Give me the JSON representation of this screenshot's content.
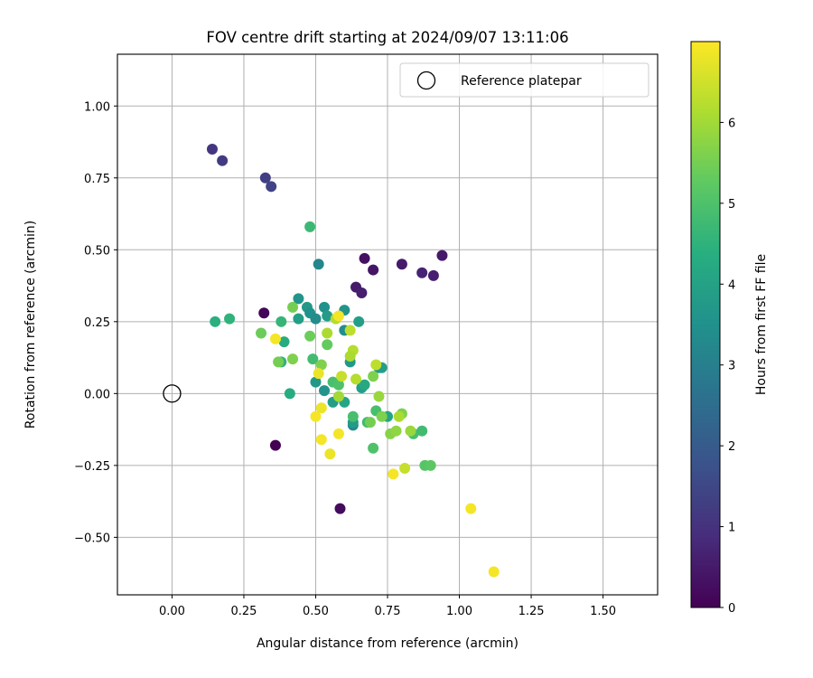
{
  "chart_data": {
    "type": "scatter",
    "title": "FOV centre drift starting at 2024/09/07 13:11:06",
    "xlabel": "Angular distance from reference (arcmin)",
    "ylabel": "Rotation from reference (arcmin)",
    "xlim": [
      -0.19,
      1.69
    ],
    "ylim": [
      -0.7,
      1.18
    ],
    "xticks": [
      0.0,
      0.25,
      0.5,
      0.75,
      1.0,
      1.25,
      1.5
    ],
    "xtick_labels": [
      "0.00",
      "0.25",
      "0.50",
      "0.75",
      "1.00",
      "1.25",
      "1.50"
    ],
    "yticks": [
      -0.5,
      -0.25,
      0.0,
      0.25,
      0.5,
      0.75,
      1.0
    ],
    "ytick_labels": [
      "−0.50",
      "−0.25",
      "0.00",
      "0.25",
      "0.50",
      "0.75",
      "1.00"
    ],
    "grid": true,
    "colormap": "viridis",
    "colorbar": {
      "label": "Hours from first FF file",
      "range": [
        0,
        7.0
      ],
      "ticks": [
        0,
        1,
        2,
        3,
        4,
        5,
        6
      ],
      "tick_labels": [
        "0",
        "1",
        "2",
        "3",
        "4",
        "5",
        "6"
      ]
    },
    "legend": {
      "placement": "top-right",
      "entries": [
        {
          "label": "Reference platepar",
          "marker": "open-circle"
        }
      ]
    },
    "reference_point": {
      "x": 0.0,
      "y": 0.0
    },
    "points": [
      {
        "x": 0.36,
        "y": -0.18,
        "c": 0.0
      },
      {
        "x": 0.32,
        "y": 0.28,
        "c": 0.1
      },
      {
        "x": 0.585,
        "y": -0.4,
        "c": 0.2
      },
      {
        "x": 0.67,
        "y": 0.47,
        "c": 0.3
      },
      {
        "x": 0.7,
        "y": 0.43,
        "c": 0.4
      },
      {
        "x": 0.64,
        "y": 0.37,
        "c": 0.5
      },
      {
        "x": 0.66,
        "y": 0.35,
        "c": 0.6
      },
      {
        "x": 0.8,
        "y": 0.45,
        "c": 0.5
      },
      {
        "x": 0.87,
        "y": 0.42,
        "c": 0.7
      },
      {
        "x": 0.91,
        "y": 0.41,
        "c": 0.6
      },
      {
        "x": 0.94,
        "y": 0.48,
        "c": 0.5
      },
      {
        "x": 0.14,
        "y": 0.85,
        "c": 1.1
      },
      {
        "x": 0.175,
        "y": 0.81,
        "c": 1.2
      },
      {
        "x": 0.325,
        "y": 0.75,
        "c": 1.3
      },
      {
        "x": 0.345,
        "y": 0.72,
        "c": 1.4
      },
      {
        "x": 0.51,
        "y": 0.45,
        "c": 3.2
      },
      {
        "x": 0.44,
        "y": 0.33,
        "c": 3.6
      },
      {
        "x": 0.47,
        "y": 0.3,
        "c": 3.7
      },
      {
        "x": 0.48,
        "y": 0.28,
        "c": 3.5
      },
      {
        "x": 0.5,
        "y": 0.26,
        "c": 3.4
      },
      {
        "x": 0.53,
        "y": 0.3,
        "c": 3.5
      },
      {
        "x": 0.54,
        "y": 0.27,
        "c": 3.8
      },
      {
        "x": 0.6,
        "y": 0.29,
        "c": 3.6
      },
      {
        "x": 0.65,
        "y": 0.25,
        "c": 3.9
      },
      {
        "x": 0.44,
        "y": 0.26,
        "c": 3.9
      },
      {
        "x": 0.6,
        "y": 0.22,
        "c": 3.4
      },
      {
        "x": 0.62,
        "y": 0.11,
        "c": 3.7
      },
      {
        "x": 0.72,
        "y": 0.09,
        "c": 3.6
      },
      {
        "x": 0.73,
        "y": 0.09,
        "c": 3.9
      },
      {
        "x": 0.5,
        "y": 0.04,
        "c": 3.7
      },
      {
        "x": 0.53,
        "y": 0.01,
        "c": 3.6
      },
      {
        "x": 0.56,
        "y": -0.03,
        "c": 3.9
      },
      {
        "x": 0.63,
        "y": -0.11,
        "c": 3.3
      },
      {
        "x": 0.63,
        "y": -0.1,
        "c": 3.8
      },
      {
        "x": 0.66,
        "y": 0.02,
        "c": 3.9
      },
      {
        "x": 0.67,
        "y": 0.03,
        "c": 4.2
      },
      {
        "x": 0.75,
        "y": -0.08,
        "c": 4.1
      },
      {
        "x": 0.6,
        "y": -0.03,
        "c": 4.1
      },
      {
        "x": 0.41,
        "y": 0.0,
        "c": 4.3
      },
      {
        "x": 0.48,
        "y": 0.58,
        "c": 4.7
      },
      {
        "x": 0.15,
        "y": 0.25,
        "c": 4.4
      },
      {
        "x": 0.2,
        "y": 0.26,
        "c": 4.5
      },
      {
        "x": 0.38,
        "y": 0.25,
        "c": 4.6
      },
      {
        "x": 0.39,
        "y": 0.18,
        "c": 4.3
      },
      {
        "x": 0.38,
        "y": 0.11,
        "c": 4.5
      },
      {
        "x": 0.49,
        "y": 0.12,
        "c": 4.8
      },
      {
        "x": 0.56,
        "y": 0.04,
        "c": 4.9
      },
      {
        "x": 0.58,
        "y": 0.03,
        "c": 5.0
      },
      {
        "x": 0.63,
        "y": -0.08,
        "c": 4.9
      },
      {
        "x": 0.68,
        "y": -0.1,
        "c": 4.8
      },
      {
        "x": 0.71,
        "y": -0.06,
        "c": 4.9
      },
      {
        "x": 0.7,
        "y": -0.19,
        "c": 5.0
      },
      {
        "x": 0.84,
        "y": -0.14,
        "c": 4.9
      },
      {
        "x": 0.87,
        "y": -0.13,
        "c": 4.8
      },
      {
        "x": 0.88,
        "y": -0.25,
        "c": 5.1
      },
      {
        "x": 0.9,
        "y": -0.25,
        "c": 5.2
      },
      {
        "x": 0.31,
        "y": 0.21,
        "c": 5.4
      },
      {
        "x": 0.37,
        "y": 0.11,
        "c": 5.5
      },
      {
        "x": 0.42,
        "y": 0.12,
        "c": 5.6
      },
      {
        "x": 0.42,
        "y": 0.3,
        "c": 5.5
      },
      {
        "x": 0.48,
        "y": 0.2,
        "c": 5.4
      },
      {
        "x": 0.54,
        "y": 0.17,
        "c": 5.3
      },
      {
        "x": 0.52,
        "y": 0.1,
        "c": 5.6
      },
      {
        "x": 0.69,
        "y": -0.1,
        "c": 5.5
      },
      {
        "x": 0.7,
        "y": 0.06,
        "c": 5.6
      },
      {
        "x": 0.73,
        "y": -0.08,
        "c": 5.6
      },
      {
        "x": 0.76,
        "y": -0.14,
        "c": 5.7
      },
      {
        "x": 0.78,
        "y": -0.13,
        "c": 5.8
      },
      {
        "x": 0.8,
        "y": -0.07,
        "c": 5.6
      },
      {
        "x": 0.83,
        "y": -0.13,
        "c": 5.9
      },
      {
        "x": 0.72,
        "y": -0.01,
        "c": 5.9
      },
      {
        "x": 0.54,
        "y": 0.21,
        "c": 6.1
      },
      {
        "x": 0.57,
        "y": 0.26,
        "c": 6.2
      },
      {
        "x": 0.58,
        "y": -0.01,
        "c": 6.0
      },
      {
        "x": 0.62,
        "y": 0.22,
        "c": 6.3
      },
      {
        "x": 0.63,
        "y": 0.15,
        "c": 6.2
      },
      {
        "x": 0.62,
        "y": 0.13,
        "c": 6.1
      },
      {
        "x": 0.64,
        "y": 0.05,
        "c": 6.2
      },
      {
        "x": 0.59,
        "y": 0.06,
        "c": 6.4
      },
      {
        "x": 0.71,
        "y": 0.1,
        "c": 6.3
      },
      {
        "x": 0.79,
        "y": -0.08,
        "c": 6.1
      },
      {
        "x": 0.81,
        "y": -0.26,
        "c": 6.4
      },
      {
        "x": 0.36,
        "y": 0.19,
        "c": 6.9
      },
      {
        "x": 0.51,
        "y": 0.07,
        "c": 6.8
      },
      {
        "x": 0.5,
        "y": -0.08,
        "c": 6.9
      },
      {
        "x": 0.52,
        "y": -0.05,
        "c": 6.8
      },
      {
        "x": 0.52,
        "y": -0.16,
        "c": 6.9
      },
      {
        "x": 0.55,
        "y": -0.21,
        "c": 6.8
      },
      {
        "x": 0.58,
        "y": 0.27,
        "c": 6.9
      },
      {
        "x": 0.58,
        "y": -0.14,
        "c": 6.9
      },
      {
        "x": 0.77,
        "y": -0.28,
        "c": 6.9
      },
      {
        "x": 1.04,
        "y": -0.4,
        "c": 6.9
      },
      {
        "x": 1.12,
        "y": -0.62,
        "c": 6.9
      }
    ]
  }
}
